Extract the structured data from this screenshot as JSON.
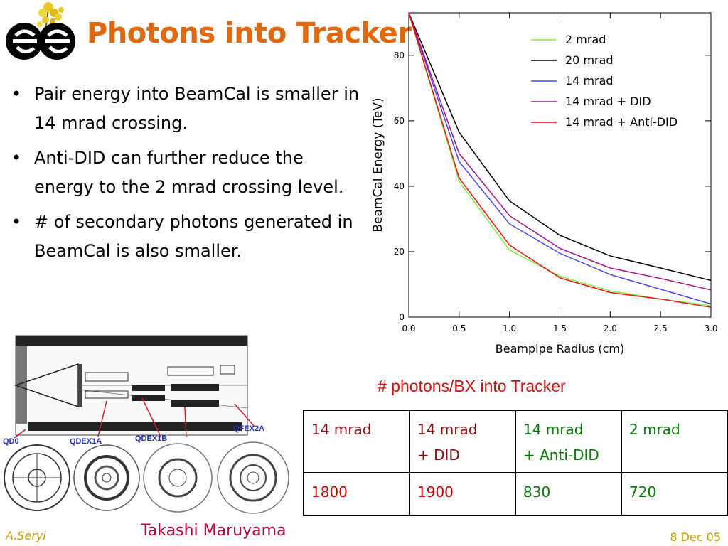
{
  "title": "Photons into Tracker",
  "bullets": [
    "Pair energy into BeamCal is smaller in 14 mrad crossing.",
    "Anti-DID can further reduce the energy to the 2 mrad crossing level.",
    "# of secondary photons generated in BeamCal is also smaller."
  ],
  "chart_data": {
    "type": "line",
    "xlabel": "Beampipe Radius (cm)",
    "ylabel": "BeamCal Energy (TeV)",
    "xlim": [
      0,
      3
    ],
    "ylim": [
      0,
      93
    ],
    "xticks": [
      "0.0",
      "0.5",
      "1.0",
      "1.5",
      "2.0",
      "2.5",
      "3.0"
    ],
    "yticks": [
      "0",
      "20",
      "40",
      "60",
      "80"
    ],
    "x": [
      0,
      0.5,
      1.0,
      1.5,
      2.0,
      2.5,
      3.0
    ],
    "legend_position": "top-right",
    "grid": false,
    "series": [
      {
        "name": "2 mrad",
        "color": "#80ee40",
        "values": [
          93,
          41.5,
          20.5,
          12.5,
          8.0,
          5.5,
          3.5
        ]
      },
      {
        "name": "20 mrad",
        "color": "#000000",
        "values": [
          93,
          56.5,
          35.5,
          25.0,
          18.7,
          15.0,
          11.2
        ]
      },
      {
        "name": "14 mrad",
        "color": "#4848ee",
        "values": [
          93,
          47.5,
          28.5,
          19.5,
          13.0,
          8.5,
          4.0
        ]
      },
      {
        "name": "14 mrad + DID",
        "color": "#aa1188",
        "values": [
          93,
          50.0,
          31.0,
          21.0,
          15.0,
          11.8,
          8.3
        ]
      },
      {
        "name": "14 mrad + Anti-DID",
        "color": "#ee1111",
        "values": [
          93,
          42.5,
          22.0,
          12.0,
          7.5,
          5.5,
          3.0
        ]
      }
    ]
  },
  "caption": "# photons/BX into Tracker",
  "table": {
    "headers": [
      {
        "line1": "14 mrad",
        "line2": "",
        "color": "#8b1010"
      },
      {
        "line1": "14 mrad",
        "line2": "+ DID",
        "color": "#8b1010"
      },
      {
        "line1": "14 mrad",
        "line2": "+ Anti-DID",
        "color": "#0a7a0a"
      },
      {
        "line1": "2 mrad",
        "line2": "",
        "color": "#0a7a0a"
      }
    ],
    "values": [
      "1800",
      "1900",
      "830",
      "720"
    ]
  },
  "diagram": {
    "labels": [
      "QD0",
      "QDEX1A",
      "QDEX1B",
      "QFEX2A"
    ]
  },
  "footer": {
    "left": "A.Seryi",
    "center": "Takashi Maruyama",
    "right": "8 Dec 05"
  }
}
